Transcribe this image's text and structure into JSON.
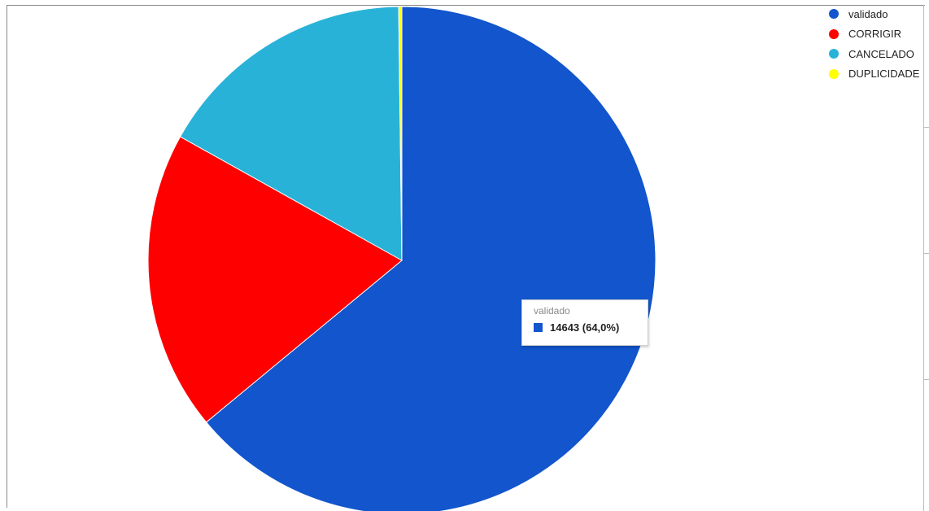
{
  "chart_data": {
    "type": "pie",
    "categories": [
      "validado",
      "CORRIGIR",
      "CANCELADO",
      "DUPLICIDADE"
    ],
    "colors": [
      "#1255cc",
      "#ff0000",
      "#29b2d8",
      "#ffff00"
    ],
    "values": [
      64.0,
      19.1,
      16.7,
      0.2
    ],
    "legend_position": "top-right",
    "tooltip": {
      "title": "validado",
      "value_text": "14643 (64,0%)",
      "color": "#1255cc"
    }
  }
}
